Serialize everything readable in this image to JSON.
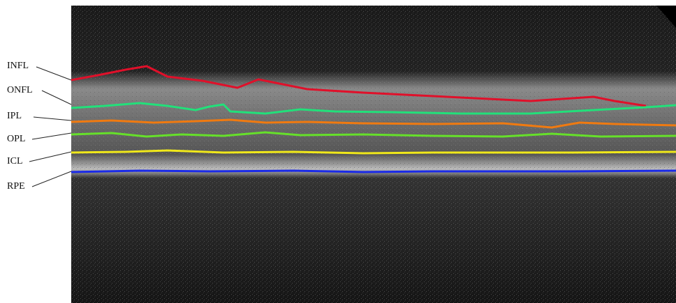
{
  "layer_labels": [
    "INFL",
    "ONFL",
    "IPL",
    "OPL",
    "ICL",
    "RPE"
  ]
}
